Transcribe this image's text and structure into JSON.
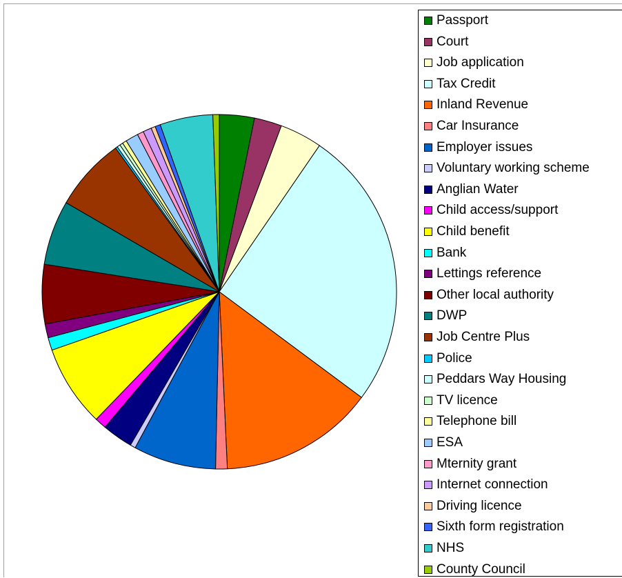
{
  "chart_data": {
    "type": "pie",
    "title": "",
    "legend_position": "right",
    "slices": [
      {
        "label": "Passport",
        "value": 3.3,
        "color": "#008000"
      },
      {
        "label": "Court",
        "value": 2.6,
        "color": "#993366"
      },
      {
        "label": "Job application",
        "value": 4.0,
        "color": "#ffffcc"
      },
      {
        "label": "Tax Credit",
        "value": 26.5,
        "color": "#ccffff"
      },
      {
        "label": "Inland Revenue",
        "value": 14.6,
        "color": "#ff6600"
      },
      {
        "label": "Car Insurance",
        "value": 1.1,
        "color": "#ff8080"
      },
      {
        "label": "Employer issues",
        "value": 7.8,
        "color": "#0066cc"
      },
      {
        "label": "Voluntary working scheme",
        "value": 0.5,
        "color": "#ccccff"
      },
      {
        "label": "Anglian Water",
        "value": 2.9,
        "color": "#000080"
      },
      {
        "label": "Child access/support",
        "value": 1.1,
        "color": "#ff00ff"
      },
      {
        "label": "Child benefit",
        "value": 7.7,
        "color": "#ffff00"
      },
      {
        "label": "Bank",
        "value": 1.2,
        "color": "#00ffff"
      },
      {
        "label": "Lettings reference",
        "value": 1.3,
        "color": "#800080"
      },
      {
        "label": "Other local authority",
        "value": 5.6,
        "color": "#800000"
      },
      {
        "label": "DWP",
        "value": 6.1,
        "color": "#008080"
      },
      {
        "label": "Job Centre Plus",
        "value": 6.9,
        "color": "#993300"
      },
      {
        "label": "Police",
        "value": 0.2,
        "color": "#00ccff"
      },
      {
        "label": "Peddars Way Housing",
        "value": 0.3,
        "color": "#ccffff"
      },
      {
        "label": "TV licence",
        "value": 0.3,
        "color": "#ccffcc"
      },
      {
        "label": "Telephone bill",
        "value": 0.4,
        "color": "#ffff99"
      },
      {
        "label": "ESA",
        "value": 1.2,
        "color": "#99ccff"
      },
      {
        "label": "Mternity grant",
        "value": 0.6,
        "color": "#ff99cc"
      },
      {
        "label": "Internet connection",
        "value": 0.8,
        "color": "#cc99ff"
      },
      {
        "label": "Driving licence",
        "value": 0.4,
        "color": "#ffcc99"
      },
      {
        "label": "Sixth form registration",
        "value": 0.5,
        "color": "#3366ff"
      },
      {
        "label": "NHS",
        "value": 5.0,
        "color": "#33cccc"
      },
      {
        "label": "County Council",
        "value": 0.6,
        "color": "#99cc00"
      }
    ]
  }
}
